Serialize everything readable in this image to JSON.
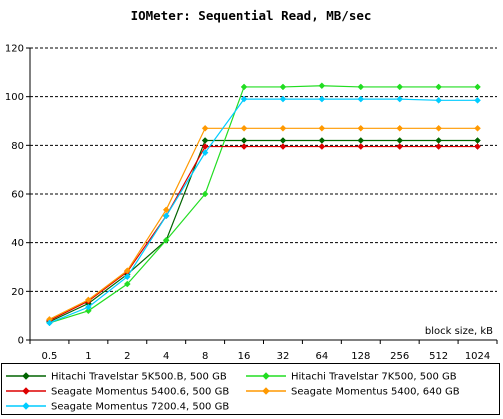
{
  "chart_data": {
    "type": "line",
    "title": "IOMeter: Sequential Read, MB/sec",
    "xlabel": "block size, kB",
    "ylabel": "",
    "ylim": [
      0,
      120
    ],
    "yticks": [
      0,
      20,
      40,
      60,
      80,
      100,
      120
    ],
    "grid": "horizontal-dashed",
    "legend_placement": "bottom",
    "categories": [
      "0.5",
      "1",
      "2",
      "4",
      "8",
      "16",
      "32",
      "64",
      "128",
      "256",
      "512",
      "1024"
    ],
    "series": [
      {
        "name": "Hitachi Travelstar 5K500.B, 500 GB",
        "color": "#006400",
        "marker": "diamond",
        "values": [
          7.5,
          15,
          27,
          41,
          82,
          82,
          82,
          82,
          82,
          82,
          82,
          82
        ]
      },
      {
        "name": "Hitachi Travelstar 7K500, 500 GB",
        "color": "#22dd22",
        "marker": "diamond",
        "values": [
          7,
          12,
          23,
          41,
          60,
          104,
          104,
          104.5,
          104,
          104,
          104,
          104
        ]
      },
      {
        "name": "Seagate Momentus 5400.6, 500 GB",
        "color": "#dd0000",
        "marker": "diamond",
        "values": [
          8,
          16,
          28,
          51,
          79.5,
          79.5,
          79.5,
          79.5,
          79.5,
          79.5,
          79.5,
          79.5
        ]
      },
      {
        "name": "Seagate Momentus 5400, 640 GB",
        "color": "#ff9900",
        "marker": "diamond",
        "values": [
          8.5,
          16.5,
          28.5,
          53.5,
          87,
          87,
          87,
          87,
          87,
          87,
          87,
          87
        ]
      },
      {
        "name": "Seagate Momentus 7200.4, 500 GB",
        "color": "#00ccff",
        "marker": "diamond",
        "values": [
          7,
          13.5,
          26,
          51,
          77,
          99,
          99,
          99,
          99,
          99,
          98.5,
          98.5
        ]
      }
    ]
  }
}
